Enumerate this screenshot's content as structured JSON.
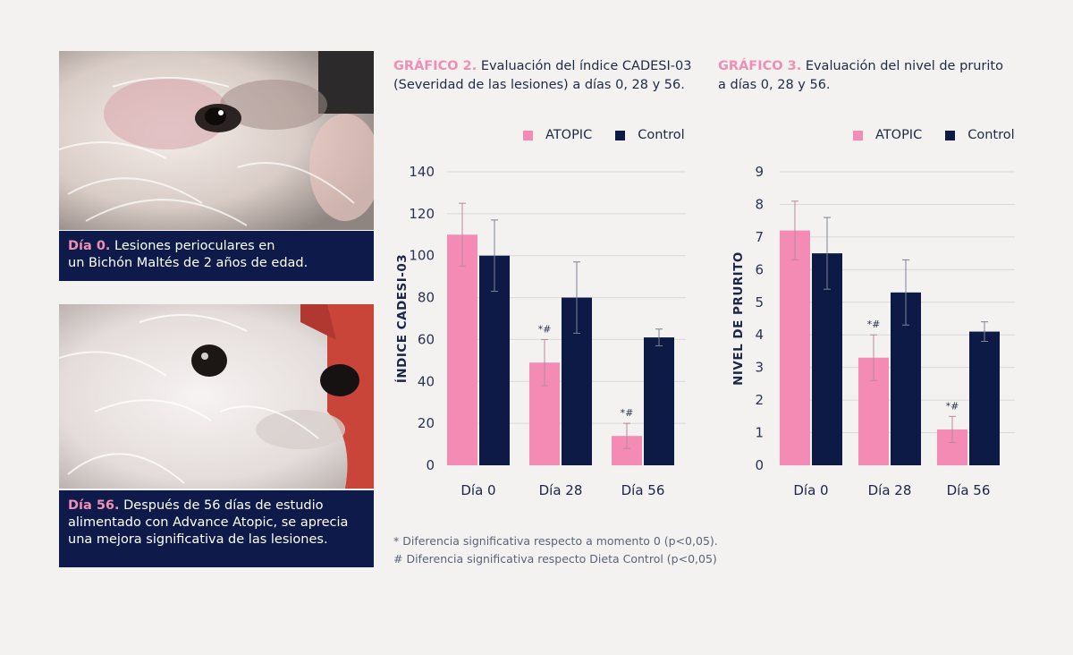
{
  "photos": [
    {
      "caption_highlight": "Día 0.",
      "caption_lines": [
        "Lesiones perioculares en",
        "un Bichón Maltés de 2 años de edad."
      ]
    },
    {
      "caption_highlight": "Día 56.",
      "caption_lines": [
        "Después de 56 días de estudio",
        "alimentado con Advance Atopic, se aprecia",
        "una mejora significativa de las lesiones."
      ]
    }
  ],
  "colors": {
    "atopic": "#f48bb4",
    "control": "#0d1a45",
    "caption_bg": "#0d1a4a",
    "highlight": "#ee8fb5"
  },
  "charts": [
    {
      "title_highlight": "GRÁFICO 2.",
      "title_line1": "Evaluación del índice CADESI-03",
      "title_line2": "(Severidad de las lesiones)  a días 0, 28 y 56."
    },
    {
      "title_highlight": "GRÁFICO 3.",
      "title_line1": "Evaluación del nivel de prurito",
      "title_line2": "a días 0, 28 y 56."
    }
  ],
  "chart_data": [
    {
      "type": "bar",
      "title": "GRÁFICO 2. Evaluación del índice CADESI-03 (Severidad de las lesiones)  a días 0, 28 y 56.",
      "categories": [
        "Día 0",
        "Día 28",
        "Día 56"
      ],
      "series": [
        {
          "name": "ATOPIC",
          "values": [
            110,
            49,
            14
          ],
          "errors": [
            15,
            11,
            6
          ],
          "annotations": [
            "",
            "*#",
            "*#"
          ]
        },
        {
          "name": "Control",
          "values": [
            100,
            80,
            61
          ],
          "errors": [
            17,
            17,
            4
          ],
          "annotations": [
            "",
            "",
            ""
          ]
        }
      ],
      "ylabel": "ÍNDICE CADESI-03",
      "xlabel": "",
      "ylim": [
        0,
        140
      ],
      "yticks": [
        "0",
        "20",
        "40",
        "60",
        "80",
        "100",
        "120",
        "140"
      ],
      "grid": true,
      "legend_position": "top-right"
    },
    {
      "type": "bar",
      "title": "GRÁFICO 3. Evaluación del nivel de prurito a días 0, 28 y 56.",
      "categories": [
        "Día 0",
        "Día 28",
        "Día 56"
      ],
      "series": [
        {
          "name": "ATOPIC",
          "values": [
            7.2,
            3.3,
            1.1
          ],
          "errors": [
            0.9,
            0.7,
            0.4
          ],
          "annotations": [
            "",
            "*#",
            "*#"
          ]
        },
        {
          "name": "Control",
          "values": [
            6.5,
            5.3,
            4.1
          ],
          "errors": [
            1.1,
            1.0,
            0.3
          ],
          "annotations": [
            "",
            "",
            ""
          ]
        }
      ],
      "ylabel": "NIVEL DE PRURITO",
      "xlabel": "",
      "ylim": [
        0,
        9
      ],
      "yticks": [
        "0",
        "1",
        "2",
        "3",
        "4",
        "5",
        "6",
        "7",
        "8",
        "9"
      ],
      "grid": true,
      "legend_position": "top-right"
    }
  ],
  "footnotes": [
    "* Diferencia significativa respecto a momento 0  (p<0,05).",
    "# Diferencia significativa respecto Dieta Control  (p<0,05)"
  ]
}
